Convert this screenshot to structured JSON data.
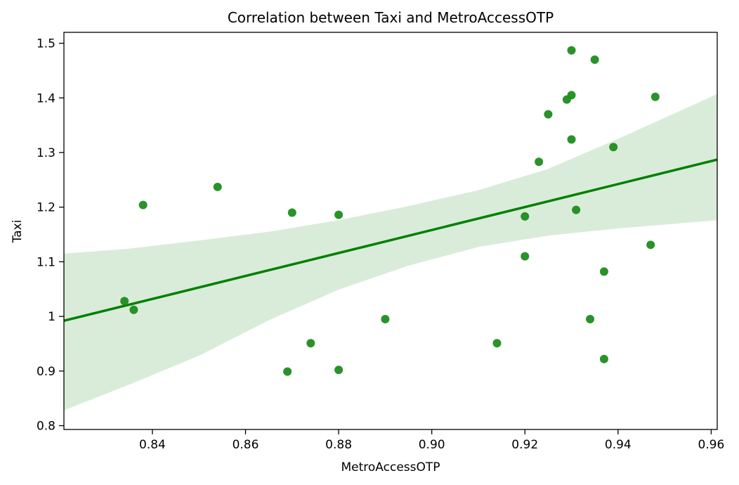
{
  "chart_data": {
    "type": "scatter",
    "title": "Correlation between Taxi and MetroAccessOTP",
    "xlabel": "MetroAccessOTP",
    "ylabel": "Taxi",
    "xlim": [
      0.821,
      0.9613
    ],
    "ylim": [
      0.793,
      1.52
    ],
    "xticks": [
      0.84,
      0.86,
      0.88,
      0.9,
      0.92,
      0.94,
      0.96
    ],
    "xtick_labels": [
      "0.84",
      "0.86",
      "0.88",
      "0.90",
      "0.92",
      "0.94",
      "0.96"
    ],
    "yticks": [
      0.8,
      0.9,
      1.0,
      1.1,
      1.2,
      1.3,
      1.4,
      1.5
    ],
    "ytick_labels": [
      "0.8",
      "0.9",
      "1",
      "1.1",
      "1.2",
      "1.3",
      "1.4",
      "1.5"
    ],
    "grid": false,
    "colors": {
      "points": "#1f8c1f",
      "line": "#008000",
      "band": "#d9ecd9"
    },
    "points": [
      {
        "x": 0.834,
        "y": 1.028
      },
      {
        "x": 0.836,
        "y": 1.012
      },
      {
        "x": 0.838,
        "y": 1.204
      },
      {
        "x": 0.854,
        "y": 1.237
      },
      {
        "x": 0.869,
        "y": 0.899
      },
      {
        "x": 0.87,
        "y": 1.19
      },
      {
        "x": 0.874,
        "y": 0.951
      },
      {
        "x": 0.88,
        "y": 0.902
      },
      {
        "x": 0.88,
        "y": 1.186
      },
      {
        "x": 0.89,
        "y": 0.995
      },
      {
        "x": 0.914,
        "y": 0.951
      },
      {
        "x": 0.92,
        "y": 1.183
      },
      {
        "x": 0.92,
        "y": 1.11
      },
      {
        "x": 0.923,
        "y": 1.283
      },
      {
        "x": 0.925,
        "y": 1.37
      },
      {
        "x": 0.929,
        "y": 1.397
      },
      {
        "x": 0.93,
        "y": 1.487
      },
      {
        "x": 0.93,
        "y": 1.405
      },
      {
        "x": 0.93,
        "y": 1.324
      },
      {
        "x": 0.931,
        "y": 1.195
      },
      {
        "x": 0.934,
        "y": 0.995
      },
      {
        "x": 0.935,
        "y": 1.47
      },
      {
        "x": 0.937,
        "y": 1.082
      },
      {
        "x": 0.937,
        "y": 0.922
      },
      {
        "x": 0.939,
        "y": 1.31
      },
      {
        "x": 0.947,
        "y": 1.131
      },
      {
        "x": 0.948,
        "y": 1.402
      }
    ],
    "regression_line": [
      {
        "x": 0.821,
        "y": 0.992
      },
      {
        "x": 0.9613,
        "y": 1.287
      }
    ],
    "confidence_band": {
      "x": [
        0.821,
        0.835,
        0.85,
        0.865,
        0.88,
        0.895,
        0.91,
        0.925,
        0.94,
        0.9613
      ],
      "upper": [
        1.115,
        1.124,
        1.139,
        1.155,
        1.176,
        1.202,
        1.231,
        1.27,
        1.325,
        1.407
      ],
      "lower": [
        0.828,
        0.875,
        0.928,
        0.993,
        1.049,
        1.093,
        1.127,
        1.148,
        1.161,
        1.176
      ]
    }
  }
}
